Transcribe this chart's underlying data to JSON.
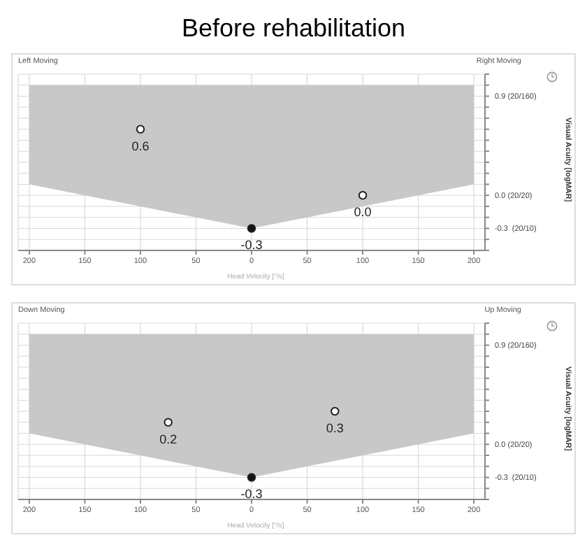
{
  "chart_data": [
    {
      "type": "scatter",
      "title": "Before rehabilitation",
      "xlabel": "Head Velocity [°/s]",
      "ylabel": "Visual Acuity [logMAR]",
      "annotations": [
        "Left Moving",
        "Right Moving",
        "(20/10)",
        "(20/20)",
        "(20/160)"
      ],
      "series": [
        {
          "type": "line",
          "color": "#c8c8c8",
          "x": [
            -200,
            0,
            200
          ],
          "values": [
            null,
            null,
            null
          ],
          "lower": [
            0.1,
            -0.3,
            0.1
          ],
          "upper": [
            1.0,
            1.0,
            1.0
          ]
        },
        {
          "color": "#ffffff",
          "x": [
            -100,
            100
          ],
          "values": [
            0.6,
            0.0
          ],
          "value_labels": [
            "0.6",
            "0.0"
          ]
        },
        {
          "color": "#111111",
          "x": [
            0
          ],
          "values": [
            -0.3
          ],
          "value_labels": [
            "-0.3"
          ]
        }
      ],
      "marker": "circle",
      "grid": true,
      "xlim": [
        -210,
        210
      ],
      "xticks": [
        {
          "value": -200,
          "label": "200"
        },
        {
          "value": -150,
          "label": "150"
        },
        {
          "value": -100,
          "label": "100"
        },
        {
          "value": -50,
          "label": "50"
        },
        0,
        50,
        100,
        150,
        200
      ],
      "ylim": [
        -0.5,
        1.1
      ],
      "yticks": [
        {
          "value": -0.5,
          "label": null
        },
        {
          "value": -0.4,
          "label": null
        },
        {
          "value": -0.3,
          "label": "-0.3"
        },
        {
          "value": -0.2,
          "label": null
        },
        {
          "value": -0.1,
          "label": null
        },
        {
          "value": 0,
          "label": "0.0"
        },
        {
          "value": 0.1,
          "label": null
        },
        {
          "value": 0.2,
          "label": null
        },
        {
          "value": 0.3,
          "label": null
        },
        {
          "value": 0.4,
          "label": null
        },
        {
          "value": 0.5,
          "label": null
        },
        {
          "value": 0.6,
          "label": null
        },
        {
          "value": 0.7,
          "label": null
        },
        {
          "value": 0.8,
          "label": null
        },
        {
          "value": 0.9,
          "label": "0.9"
        },
        {
          "value": 1.0,
          "label": null
        },
        {
          "value": 1.1,
          "label": null
        }
      ]
    },
    {
      "type": "scatter",
      "xlabel": "Head Velocity [°/s]",
      "ylabel": "Visual Acuity [logMAR]",
      "annotations": [
        "Down Moving",
        "Up Moving",
        "(20/10)",
        "(20/20)",
        "(20/160)"
      ],
      "series": [
        {
          "type": "line",
          "color": "#c8c8c8",
          "x": [
            -200,
            0,
            200
          ],
          "values": [
            null,
            null,
            null
          ],
          "lower": [
            0.1,
            -0.3,
            0.1
          ],
          "upper": [
            1.0,
            1.0,
            1.0
          ]
        },
        {
          "color": "#ffffff",
          "x": [
            -75,
            75
          ],
          "values": [
            0.2,
            0.3
          ],
          "value_labels": [
            "0.2",
            "0.3"
          ]
        },
        {
          "color": "#111111",
          "x": [
            0
          ],
          "values": [
            -0.3
          ],
          "value_labels": [
            "-0.3"
          ]
        }
      ],
      "marker": "circle",
      "grid": true,
      "xlim": [
        -210,
        210
      ],
      "xticks": [
        {
          "value": -200,
          "label": "200"
        },
        {
          "value": -150,
          "label": "150"
        },
        {
          "value": -100,
          "label": "100"
        },
        {
          "value": -50,
          "label": "50"
        },
        0,
        50,
        100,
        150,
        200
      ],
      "ylim": [
        -0.5,
        1.1
      ],
      "yticks": [
        {
          "value": -0.5,
          "label": null
        },
        {
          "value": -0.4,
          "label": null
        },
        {
          "value": -0.3,
          "label": "-0.3"
        },
        {
          "value": -0.2,
          "label": null
        },
        {
          "value": -0.1,
          "label": null
        },
        {
          "value": 0,
          "label": "0.0"
        },
        {
          "value": 0.1,
          "label": null
        },
        {
          "value": 0.2,
          "label": null
        },
        {
          "value": 0.3,
          "label": null
        },
        {
          "value": 0.4,
          "label": null
        },
        {
          "value": 0.5,
          "label": null
        },
        {
          "value": 0.6,
          "label": null
        },
        {
          "value": 0.7,
          "label": null
        },
        {
          "value": 0.8,
          "label": null
        },
        {
          "value": 0.9,
          "label": "0.9"
        },
        {
          "value": 1.0,
          "label": null
        },
        {
          "value": 1.1,
          "label": null
        }
      ]
    }
  ]
}
